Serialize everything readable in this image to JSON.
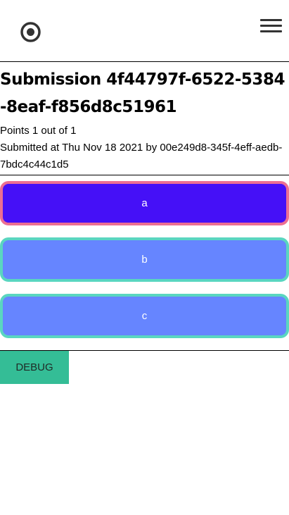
{
  "header": {
    "logo_icon": "target-logo-icon",
    "menu_icon": "hamburger-menu-icon"
  },
  "submission": {
    "title": "Submission 4f44797f-6522-5384-8eaf-f856d8c51961",
    "points": "Points 1 out of 1",
    "submitted": "Submitted at Thu Nov 18 2021 by 00e249d8-345f-4eff-aedb-7bdc4c44c1d5"
  },
  "options": [
    {
      "label": "a",
      "selected": true
    },
    {
      "label": "b",
      "selected": false
    },
    {
      "label": "c",
      "selected": false
    }
  ],
  "colors": {
    "selected_bg": "#4510f7",
    "selected_border": "#ec6f93",
    "option_bg": "#6685ff",
    "option_border": "#5ad6c0",
    "debug_bg": "#34bd96"
  },
  "debug": {
    "label": "DEBUG"
  }
}
